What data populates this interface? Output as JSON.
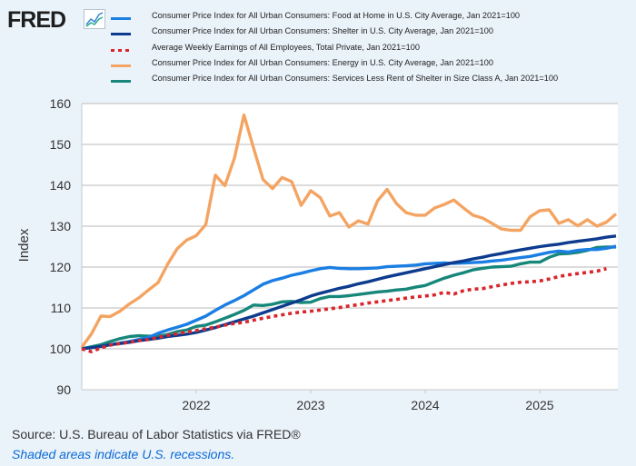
{
  "logo": {
    "text": "FRED",
    "icon": "chart-line-icon"
  },
  "footer": {
    "source": "Source: U.S. Bureau of Labor Statistics via FRED®",
    "recessions": "Shaded areas indicate U.S. recessions."
  },
  "chart_data": {
    "type": "line",
    "title": "",
    "xlabel": "",
    "ylabel": "Index",
    "ylim": [
      90,
      160
    ],
    "yticks": [
      "90",
      "100",
      "110",
      "120",
      "130",
      "140",
      "150",
      "160"
    ],
    "xticks": [
      "2022",
      "2023",
      "2024",
      "2025"
    ],
    "x_start": "2021-01",
    "x_end_month_index": 56,
    "frequency": "monthly",
    "grid": true,
    "legend_position": "top",
    "series": [
      {
        "name": "Consumer Price Index for All Urban Consumers: Food at Home in U.S. City Average, Jan 2021=100",
        "color": "#1a7ee3",
        "dash": false,
        "values": [
          100,
          100.3,
          100.6,
          101,
          101.4,
          101.8,
          102.3,
          102.8,
          103.8,
          104.6,
          105.3,
          106,
          107,
          108,
          109.4,
          110.7,
          111.8,
          113,
          114.4,
          115.8,
          116.7,
          117.3,
          118,
          118.5,
          119.1,
          119.6,
          119.9,
          119.7,
          119.6,
          119.6,
          119.7,
          119.8,
          120.1,
          120.2,
          120.3,
          120.5,
          120.8,
          120.9,
          121,
          120.9,
          121,
          121.1,
          121.2,
          121.5,
          121.7,
          122,
          122.3,
          122.6,
          123.1,
          123.6,
          123.9,
          123.7,
          124.1,
          124.3,
          124.3,
          124.6,
          125.1
        ]
      },
      {
        "name": "Consumer Price Index for All Urban Consumers: Shelter in U.S. City Average, Jan 2021=100",
        "color": "#0d3b8e",
        "dash": false,
        "values": [
          100,
          100.3,
          100.6,
          101,
          101.3,
          101.6,
          102,
          102.3,
          102.6,
          103,
          103.3,
          103.6,
          104,
          104.6,
          105.2,
          105.9,
          106.6,
          107.3,
          108,
          108.8,
          109.6,
          110.4,
          111.2,
          112,
          112.9,
          113.6,
          114.2,
          114.8,
          115.3,
          115.9,
          116.4,
          117,
          117.6,
          118.1,
          118.6,
          119.1,
          119.6,
          120.1,
          120.6,
          121.1,
          121.5,
          122,
          122.4,
          122.9,
          123.3,
          123.8,
          124.2,
          124.6,
          125,
          125.3,
          125.6,
          126,
          126.3,
          126.6,
          126.9,
          127.3,
          127.6
        ]
      },
      {
        "name": "Average Weekly Earnings of All Employees, Total Private, Jan 2021=100",
        "color": "#d9262c",
        "dash": true,
        "values": [
          100,
          99.3,
          100.2,
          100.9,
          101.3,
          101.6,
          102,
          102.3,
          102.8,
          103.3,
          103.7,
          104.1,
          104.5,
          104.9,
          105.3,
          105.8,
          106.2,
          106.5,
          107,
          107.5,
          107.9,
          108.3,
          108.7,
          109,
          109.2,
          109.5,
          109.8,
          110.1,
          110.5,
          110.8,
          111.2,
          111.5,
          111.8,
          112.1,
          112.4,
          112.7,
          112.9,
          113.2,
          113.8,
          113.4,
          114.2,
          114.6,
          114.7,
          115.2,
          115.6,
          116,
          116.3,
          116.4,
          116.6,
          117.1,
          117.7,
          118.1,
          118.4,
          118.7,
          119,
          119.6,
          null
        ]
      },
      {
        "name": "Consumer Price Index for All Urban Consumers: Energy in U.S. City Average, Jan 2021=100",
        "color": "#f4a462",
        "dash": false,
        "values": [
          100.4,
          103.6,
          108,
          107.9,
          109.2,
          111,
          112.5,
          114.4,
          116.2,
          120.7,
          124.5,
          126.6,
          127.7,
          130.4,
          142.5,
          139.9,
          146.6,
          157.2,
          149.2,
          141.4,
          139.2,
          141.9,
          140.9,
          135.1,
          138.7,
          137,
          132.5,
          133.3,
          129.8,
          131.3,
          130.5,
          136.2,
          139,
          135.5,
          133.3,
          132.7,
          132.7,
          134.5,
          135.3,
          136.4,
          134.5,
          132.7,
          132,
          130.7,
          129.3,
          129,
          129,
          132.3,
          133.8,
          134,
          130.7,
          131.6,
          130.1,
          131.6,
          130,
          131,
          133
        ]
      },
      {
        "name": "Consumer Price Index for All Urban Consumers: Services Less Rent of Shelter in Size Class A, Jan 2021=100",
        "color": "#16877a",
        "dash": false,
        "values": [
          100,
          100.5,
          101,
          101.8,
          102.5,
          103,
          103.2,
          103.1,
          103.1,
          103.5,
          104.2,
          104.6,
          105.5,
          105.8,
          106.6,
          107.5,
          108.4,
          109.4,
          110.7,
          110.6,
          110.9,
          111.5,
          111.6,
          111.3,
          111.4,
          112.3,
          112.8,
          112.8,
          113,
          113.3,
          113.6,
          113.9,
          114.1,
          114.4,
          114.6,
          115.1,
          115.5,
          116.4,
          117.3,
          118,
          118.6,
          119.3,
          119.7,
          120,
          120.1,
          120.2,
          120.8,
          121.2,
          121.2,
          122.4,
          123.2,
          123.3,
          123.6,
          124.1,
          124.8,
          124.9,
          124.9
        ]
      }
    ]
  }
}
